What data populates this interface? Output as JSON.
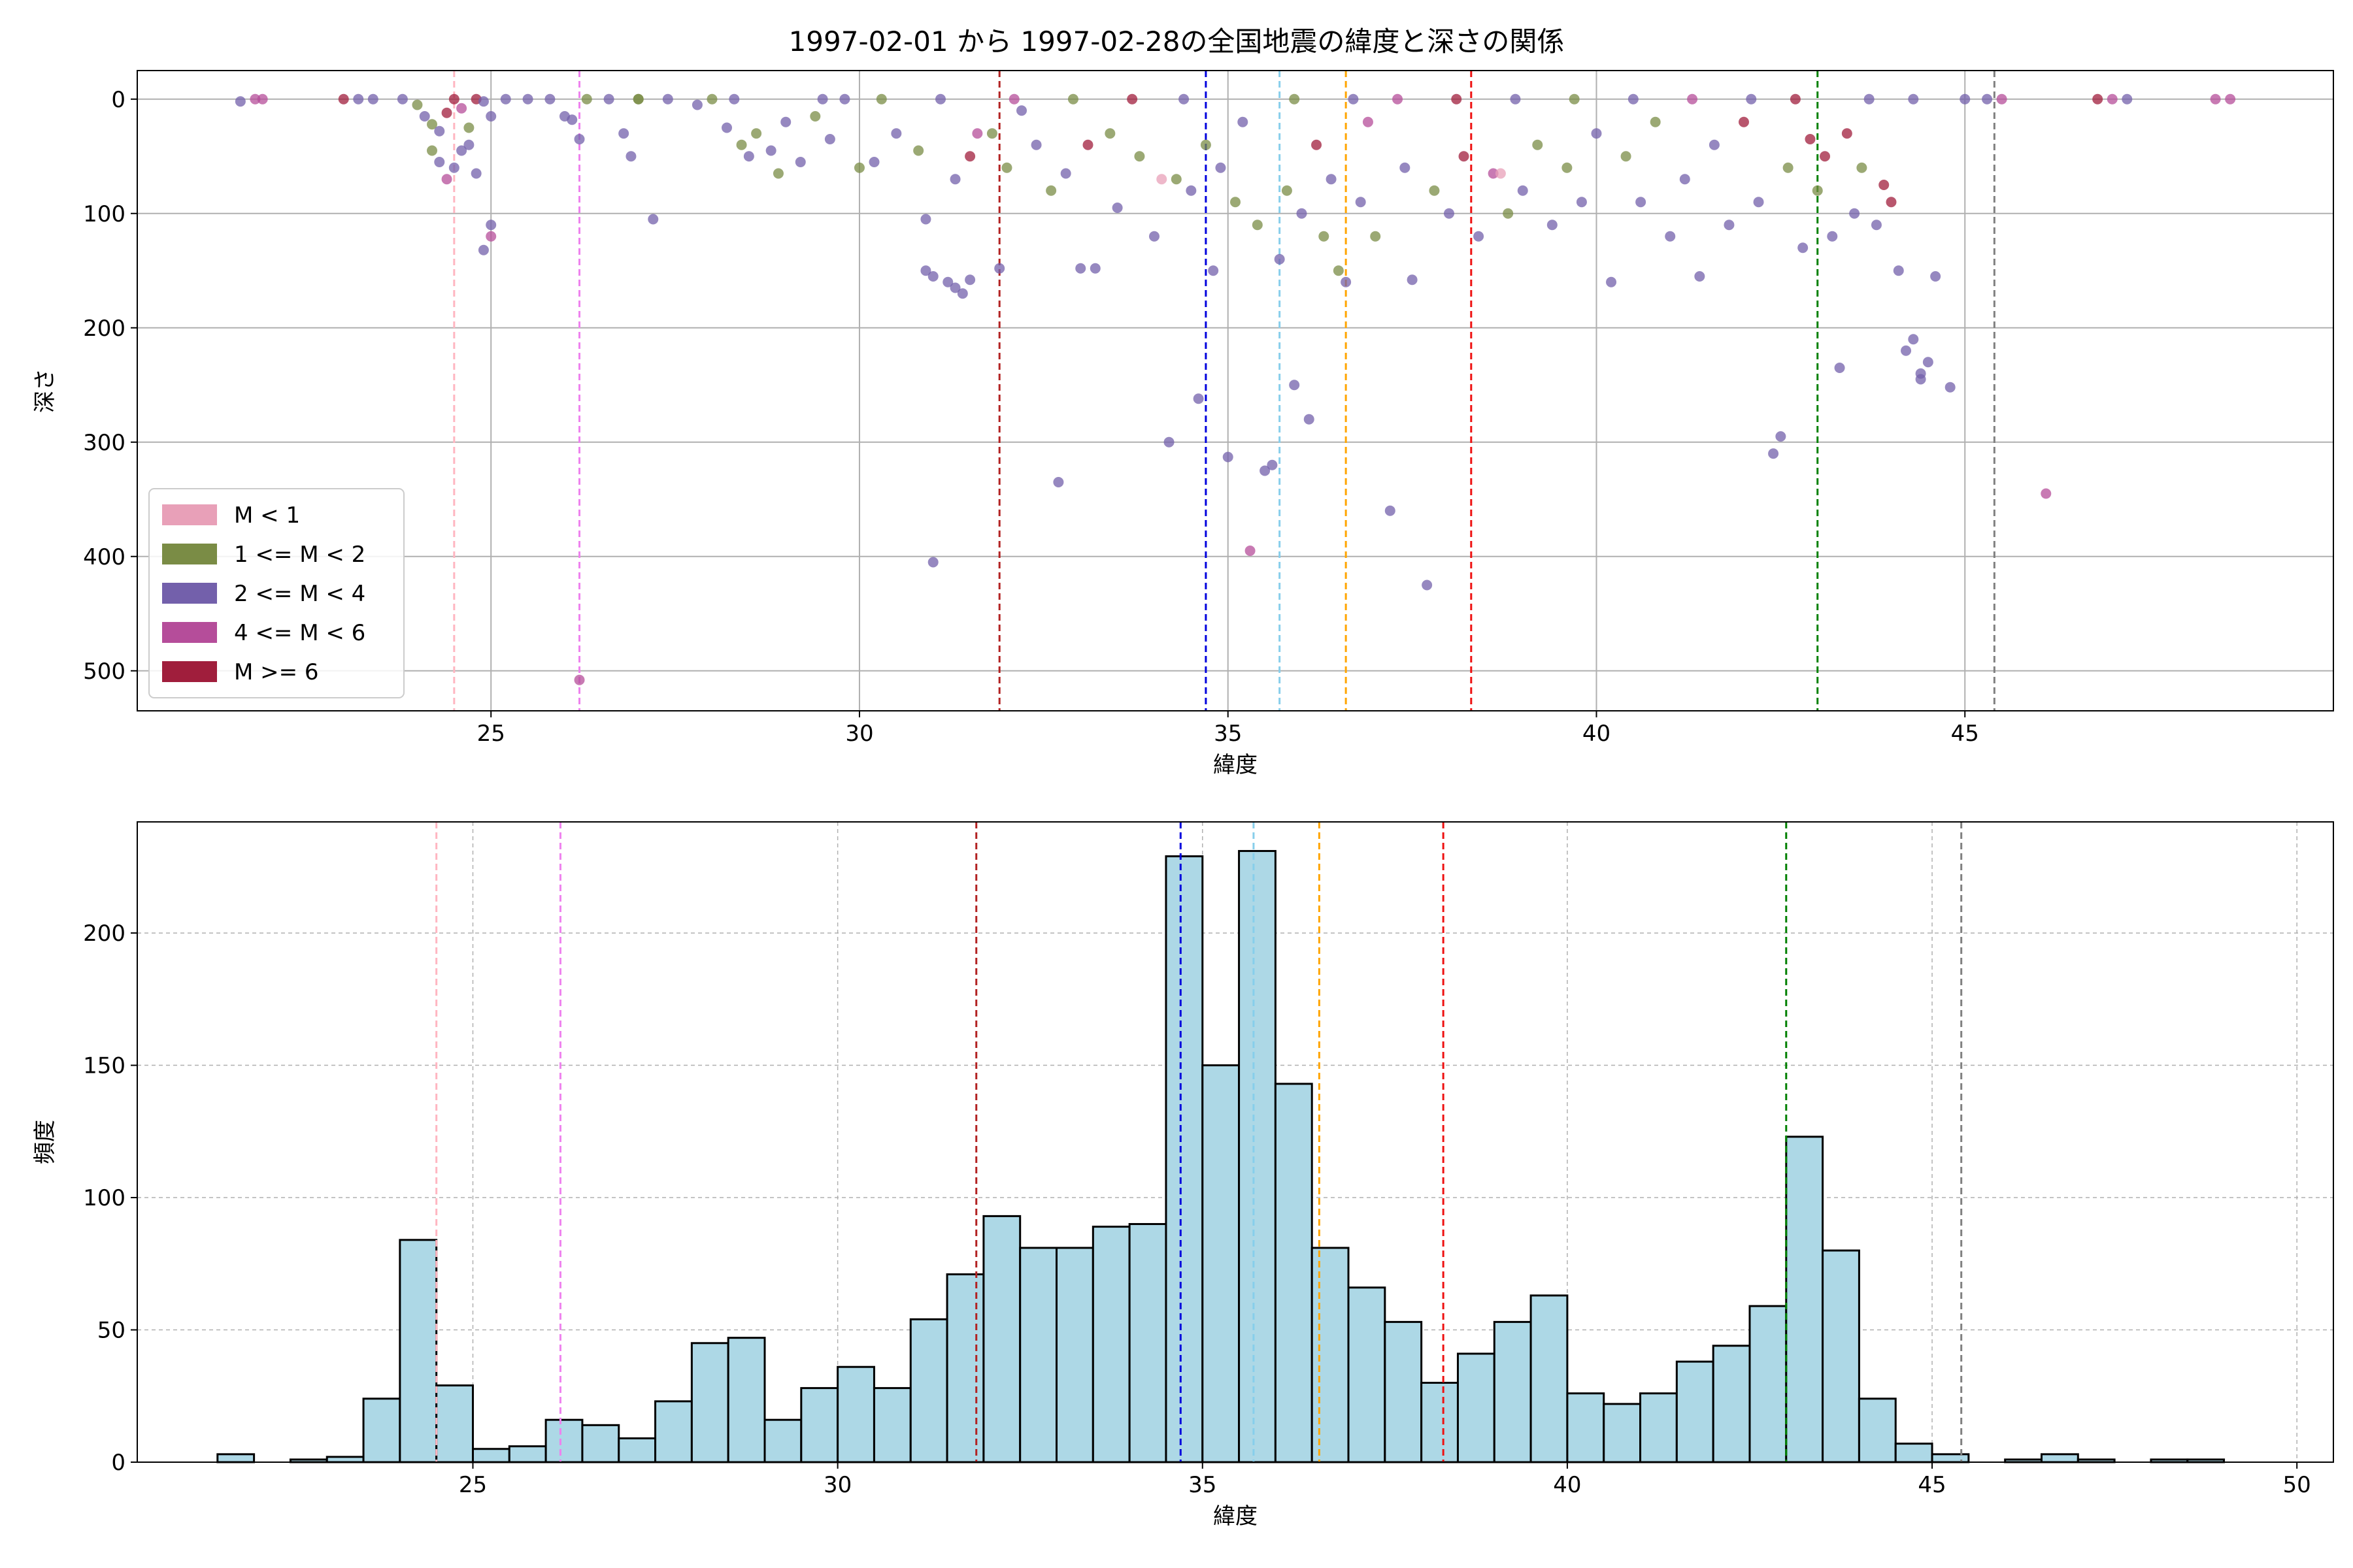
{
  "figure": {
    "title": "1997-02-01 から 1997-02-28の全国地震の緯度と深さの関係"
  },
  "colors": {
    "m_lt1": "#e8a0b8",
    "m_1_2": "#7a8c45",
    "m_2_4": "#7360ab",
    "m_4_6": "#b54d9a",
    "m_ge6": "#a01e3c",
    "hist_fill": "#add8e6",
    "hist_edge": "#000000",
    "grid": "#b0b0b0"
  },
  "vlines": [
    {
      "x": 24.5,
      "color": "#ffb6c1"
    },
    {
      "x": 26.2,
      "color": "#ee82ee"
    },
    {
      "x": 31.9,
      "color": "#b22222"
    },
    {
      "x": 34.7,
      "color": "#0000dd"
    },
    {
      "x": 35.7,
      "color": "#87ceeb"
    },
    {
      "x": 36.6,
      "color": "#ffa500"
    },
    {
      "x": 38.3,
      "color": "#ee1111"
    },
    {
      "x": 43.0,
      "color": "#008000"
    },
    {
      "x": 45.4,
      "color": "#808080"
    }
  ],
  "chart_data": [
    {
      "type": "scatter",
      "xlabel": "緯度",
      "ylabel": "深さ",
      "xlim": [
        20.2,
        50.0
      ],
      "ylim": [
        535,
        -25
      ],
      "y_inverted": true,
      "xticks": [
        25,
        30,
        35,
        40,
        45
      ],
      "yticks": [
        0,
        100,
        200,
        300,
        400,
        500
      ],
      "grid": true,
      "legend_position": "lower-left",
      "legend": [
        {
          "label": "M < 1",
          "color_key": "m_lt1"
        },
        {
          "label": "1 <= M < 2",
          "color_key": "m_1_2"
        },
        {
          "label": "2 <= M < 4",
          "color_key": "m_2_4"
        },
        {
          "label": "4 <= M < 6",
          "color_key": "m_4_6"
        },
        {
          "label": "M >= 6",
          "color_key": "m_ge6"
        }
      ],
      "points": [
        [
          21.6,
          2,
          "m_2_4"
        ],
        [
          21.8,
          0,
          "m_4_6"
        ],
        [
          21.9,
          0,
          "m_4_6"
        ],
        [
          23.0,
          0,
          "m_ge6"
        ],
        [
          23.2,
          0,
          "m_2_4"
        ],
        [
          23.4,
          0,
          "m_2_4"
        ],
        [
          23.8,
          0,
          "m_2_4"
        ],
        [
          24.0,
          5,
          "m_1_2"
        ],
        [
          24.1,
          15,
          "m_2_4"
        ],
        [
          24.2,
          22,
          "m_1_2"
        ],
        [
          24.3,
          28,
          "m_2_4"
        ],
        [
          24.4,
          12,
          "m_ge6"
        ],
        [
          24.5,
          0,
          "m_ge6"
        ],
        [
          24.6,
          8,
          "m_4_6"
        ],
        [
          24.7,
          25,
          "m_1_2"
        ],
        [
          24.2,
          45,
          "m_1_2"
        ],
        [
          24.3,
          55,
          "m_2_4"
        ],
        [
          24.4,
          70,
          "m_4_6"
        ],
        [
          24.5,
          60,
          "m_2_4"
        ],
        [
          24.6,
          45,
          "m_2_4"
        ],
        [
          24.8,
          0,
          "m_ge6"
        ],
        [
          24.9,
          2,
          "m_2_4"
        ],
        [
          25.0,
          15,
          "m_2_4"
        ],
        [
          24.8,
          65,
          "m_2_4"
        ],
        [
          24.9,
          132,
          "m_2_4"
        ],
        [
          25.0,
          120,
          "m_4_6"
        ],
        [
          25.0,
          110,
          "m_2_4"
        ],
        [
          24.7,
          40,
          "m_2_4"
        ],
        [
          25.2,
          0,
          "m_2_4"
        ],
        [
          25.5,
          0,
          "m_2_4"
        ],
        [
          25.8,
          0,
          "m_2_4"
        ],
        [
          26.0,
          15,
          "m_2_4"
        ],
        [
          26.1,
          18,
          "m_2_4"
        ],
        [
          26.2,
          35,
          "m_2_4"
        ],
        [
          26.3,
          0,
          "m_1_2"
        ],
        [
          26.2,
          508,
          "m_4_6"
        ],
        [
          26.6,
          0,
          "m_2_4"
        ],
        [
          26.8,
          30,
          "m_2_4"
        ],
        [
          26.9,
          50,
          "m_2_4"
        ],
        [
          27.2,
          105,
          "m_2_4"
        ],
        [
          27.0,
          0,
          "m_1_2"
        ],
        [
          27.4,
          0,
          "m_2_4"
        ],
        [
          27.8,
          5,
          "m_2_4"
        ],
        [
          28.0,
          0,
          "m_1_2"
        ],
        [
          28.2,
          25,
          "m_2_4"
        ],
        [
          28.4,
          40,
          "m_1_2"
        ],
        [
          28.5,
          50,
          "m_2_4"
        ],
        [
          28.6,
          30,
          "m_1_2"
        ],
        [
          28.8,
          45,
          "m_2_4"
        ],
        [
          28.9,
          65,
          "m_1_2"
        ],
        [
          29.0,
          20,
          "m_2_4"
        ],
        [
          29.2,
          55,
          "m_2_4"
        ],
        [
          29.4,
          15,
          "m_1_2"
        ],
        [
          29.6,
          35,
          "m_2_4"
        ],
        [
          29.8,
          0,
          "m_2_4"
        ],
        [
          30.0,
          60,
          "m_1_2"
        ],
        [
          30.2,
          55,
          "m_2_4"
        ],
        [
          30.5,
          30,
          "m_2_4"
        ],
        [
          30.8,
          45,
          "m_1_2"
        ],
        [
          30.9,
          105,
          "m_2_4"
        ],
        [
          30.9,
          150,
          "m_2_4"
        ],
        [
          31.0,
          155,
          "m_2_4"
        ],
        [
          31.2,
          160,
          "m_2_4"
        ],
        [
          31.3,
          165,
          "m_2_4"
        ],
        [
          31.4,
          170,
          "m_2_4"
        ],
        [
          31.5,
          158,
          "m_2_4"
        ],
        [
          31.0,
          405,
          "m_2_4"
        ],
        [
          31.3,
          70,
          "m_2_4"
        ],
        [
          31.5,
          50,
          "m_ge6"
        ],
        [
          31.8,
          30,
          "m_1_2"
        ],
        [
          31.9,
          148,
          "m_2_4"
        ],
        [
          32.0,
          60,
          "m_1_2"
        ],
        [
          32.2,
          10,
          "m_2_4"
        ],
        [
          32.4,
          40,
          "m_2_4"
        ],
        [
          32.6,
          80,
          "m_1_2"
        ],
        [
          32.7,
          335,
          "m_2_4"
        ],
        [
          32.8,
          65,
          "m_2_4"
        ],
        [
          33.0,
          148,
          "m_2_4"
        ],
        [
          33.2,
          148,
          "m_2_4"
        ],
        [
          33.4,
          30,
          "m_1_2"
        ],
        [
          33.5,
          95,
          "m_2_4"
        ],
        [
          33.8,
          50,
          "m_1_2"
        ],
        [
          34.0,
          120,
          "m_2_4"
        ],
        [
          34.2,
          300,
          "m_2_4"
        ],
        [
          34.3,
          70,
          "m_1_2"
        ],
        [
          34.5,
          80,
          "m_2_4"
        ],
        [
          34.6,
          262,
          "m_2_4"
        ],
        [
          34.7,
          40,
          "m_1_2"
        ],
        [
          34.8,
          150,
          "m_2_4"
        ],
        [
          34.9,
          60,
          "m_2_4"
        ],
        [
          35.0,
          313,
          "m_2_4"
        ],
        [
          35.1,
          90,
          "m_1_2"
        ],
        [
          35.2,
          20,
          "m_2_4"
        ],
        [
          35.3,
          395,
          "m_4_6"
        ],
        [
          35.4,
          110,
          "m_1_2"
        ],
        [
          35.5,
          325,
          "m_2_4"
        ],
        [
          35.6,
          320,
          "m_2_4"
        ],
        [
          35.7,
          140,
          "m_2_4"
        ],
        [
          35.8,
          80,
          "m_1_2"
        ],
        [
          35.9,
          250,
          "m_2_4"
        ],
        [
          36.0,
          100,
          "m_2_4"
        ],
        [
          36.1,
          280,
          "m_2_4"
        ],
        [
          36.2,
          40,
          "m_ge6"
        ],
        [
          36.3,
          120,
          "m_1_2"
        ],
        [
          36.4,
          70,
          "m_2_4"
        ],
        [
          36.5,
          150,
          "m_1_2"
        ],
        [
          36.6,
          160,
          "m_2_4"
        ],
        [
          36.8,
          90,
          "m_2_4"
        ],
        [
          37.0,
          120,
          "m_1_2"
        ],
        [
          37.2,
          360,
          "m_2_4"
        ],
        [
          37.4,
          60,
          "m_2_4"
        ],
        [
          37.5,
          158,
          "m_2_4"
        ],
        [
          37.7,
          425,
          "m_2_4"
        ],
        [
          37.8,
          80,
          "m_1_2"
        ],
        [
          38.0,
          100,
          "m_2_4"
        ],
        [
          38.2,
          50,
          "m_ge6"
        ],
        [
          38.4,
          120,
          "m_2_4"
        ],
        [
          38.6,
          65,
          "m_4_6"
        ],
        [
          38.8,
          100,
          "m_1_2"
        ],
        [
          39.0,
          80,
          "m_2_4"
        ],
        [
          39.2,
          40,
          "m_1_2"
        ],
        [
          39.4,
          110,
          "m_2_4"
        ],
        [
          39.6,
          60,
          "m_1_2"
        ],
        [
          39.8,
          90,
          "m_2_4"
        ],
        [
          40.0,
          30,
          "m_2_4"
        ],
        [
          40.2,
          160,
          "m_2_4"
        ],
        [
          40.4,
          50,
          "m_1_2"
        ],
        [
          40.6,
          90,
          "m_2_4"
        ],
        [
          40.8,
          20,
          "m_1_2"
        ],
        [
          41.0,
          120,
          "m_2_4"
        ],
        [
          41.2,
          70,
          "m_2_4"
        ],
        [
          41.4,
          155,
          "m_2_4"
        ],
        [
          41.6,
          40,
          "m_2_4"
        ],
        [
          41.8,
          110,
          "m_2_4"
        ],
        [
          42.0,
          20,
          "m_ge6"
        ],
        [
          42.2,
          90,
          "m_2_4"
        ],
        [
          42.4,
          310,
          "m_2_4"
        ],
        [
          42.5,
          295,
          "m_2_4"
        ],
        [
          42.6,
          60,
          "m_1_2"
        ],
        [
          42.8,
          130,
          "m_2_4"
        ],
        [
          42.9,
          35,
          "m_ge6"
        ],
        [
          43.0,
          80,
          "m_1_2"
        ],
        [
          43.1,
          50,
          "m_ge6"
        ],
        [
          43.2,
          120,
          "m_2_4"
        ],
        [
          43.3,
          235,
          "m_2_4"
        ],
        [
          43.4,
          30,
          "m_ge6"
        ],
        [
          43.5,
          100,
          "m_2_4"
        ],
        [
          43.6,
          60,
          "m_1_2"
        ],
        [
          43.8,
          110,
          "m_2_4"
        ],
        [
          43.9,
          75,
          "m_ge6"
        ],
        [
          44.0,
          90,
          "m_ge6"
        ],
        [
          44.1,
          150,
          "m_2_4"
        ],
        [
          44.2,
          220,
          "m_2_4"
        ],
        [
          44.3,
          210,
          "m_2_4"
        ],
        [
          44.4,
          240,
          "m_2_4"
        ],
        [
          44.5,
          230,
          "m_2_4"
        ],
        [
          44.4,
          245,
          "m_2_4"
        ],
        [
          44.6,
          155,
          "m_2_4"
        ],
        [
          44.8,
          252,
          "m_2_4"
        ],
        [
          45.0,
          0,
          "m_2_4"
        ],
        [
          45.3,
          0,
          "m_2_4"
        ],
        [
          45.5,
          0,
          "m_4_6"
        ],
        [
          46.1,
          345,
          "m_4_6"
        ],
        [
          46.8,
          0,
          "m_ge6"
        ],
        [
          47.0,
          0,
          "m_4_6"
        ],
        [
          47.2,
          0,
          "m_2_4"
        ],
        [
          48.4,
          0,
          "m_4_6"
        ],
        [
          48.6,
          0,
          "m_4_6"
        ],
        [
          27.0,
          0,
          "m_1_2"
        ],
        [
          28.3,
          0,
          "m_2_4"
        ],
        [
          29.5,
          0,
          "m_2_4"
        ],
        [
          30.3,
          0,
          "m_1_2"
        ],
        [
          31.1,
          0,
          "m_2_4"
        ],
        [
          32.1,
          0,
          "m_4_6"
        ],
        [
          32.9,
          0,
          "m_1_2"
        ],
        [
          33.7,
          0,
          "m_ge6"
        ],
        [
          34.4,
          0,
          "m_2_4"
        ],
        [
          35.9,
          0,
          "m_1_2"
        ],
        [
          36.7,
          0,
          "m_2_4"
        ],
        [
          37.3,
          0,
          "m_4_6"
        ],
        [
          38.1,
          0,
          "m_ge6"
        ],
        [
          38.9,
          0,
          "m_2_4"
        ],
        [
          39.7,
          0,
          "m_1_2"
        ],
        [
          40.5,
          0,
          "m_2_4"
        ],
        [
          41.3,
          0,
          "m_4_6"
        ],
        [
          42.1,
          0,
          "m_2_4"
        ],
        [
          42.7,
          0,
          "m_ge6"
        ],
        [
          43.7,
          0,
          "m_2_4"
        ],
        [
          44.3,
          0,
          "m_2_4"
        ],
        [
          33.1,
          40,
          "m_ge6"
        ],
        [
          34.1,
          70,
          "m_lt1"
        ],
        [
          38.7,
          65,
          "m_lt1"
        ],
        [
          31.6,
          30,
          "m_4_6"
        ],
        [
          36.9,
          20,
          "m_4_6"
        ]
      ]
    },
    {
      "type": "bar",
      "xlabel": "緯度",
      "ylabel": "頻度",
      "xlim": [
        20.4,
        50.5
      ],
      "ylim": [
        0,
        242
      ],
      "xticks": [
        25,
        30,
        35,
        40,
        45,
        50
      ],
      "yticks": [
        0,
        50,
        100,
        150,
        200
      ],
      "grid": true,
      "bin_edges": [
        21.5,
        22.0,
        22.5,
        23.0,
        23.5,
        24.0,
        24.5,
        25.0,
        25.5,
        26.0,
        26.5,
        27.0,
        27.5,
        28.0,
        28.5,
        29.0,
        29.5,
        30.0,
        30.5,
        31.0,
        31.5,
        32.0,
        32.5,
        33.0,
        33.5,
        34.0,
        34.5,
        35.0,
        35.5,
        36.0,
        36.5,
        37.0,
        37.5,
        38.0,
        38.5,
        39.0,
        39.5,
        40.0,
        40.5,
        41.0,
        41.5,
        42.0,
        42.5,
        43.0,
        43.5,
        44.0,
        44.5,
        45.0,
        45.5,
        46.0,
        46.5,
        47.0,
        47.5,
        48.0,
        48.5,
        49.0
      ],
      "values": [
        3,
        0,
        1,
        2,
        24,
        84,
        29,
        5,
        6,
        16,
        14,
        9,
        23,
        45,
        47,
        16,
        28,
        36,
        28,
        54,
        71,
        93,
        81,
        81,
        89,
        90,
        229,
        150,
        231,
        143,
        81,
        66,
        53,
        30,
        41,
        53,
        63,
        26,
        22,
        26,
        38,
        44,
        59,
        123,
        80,
        24,
        7,
        3,
        0,
        1,
        3,
        1,
        0,
        1,
        1
      ]
    }
  ]
}
